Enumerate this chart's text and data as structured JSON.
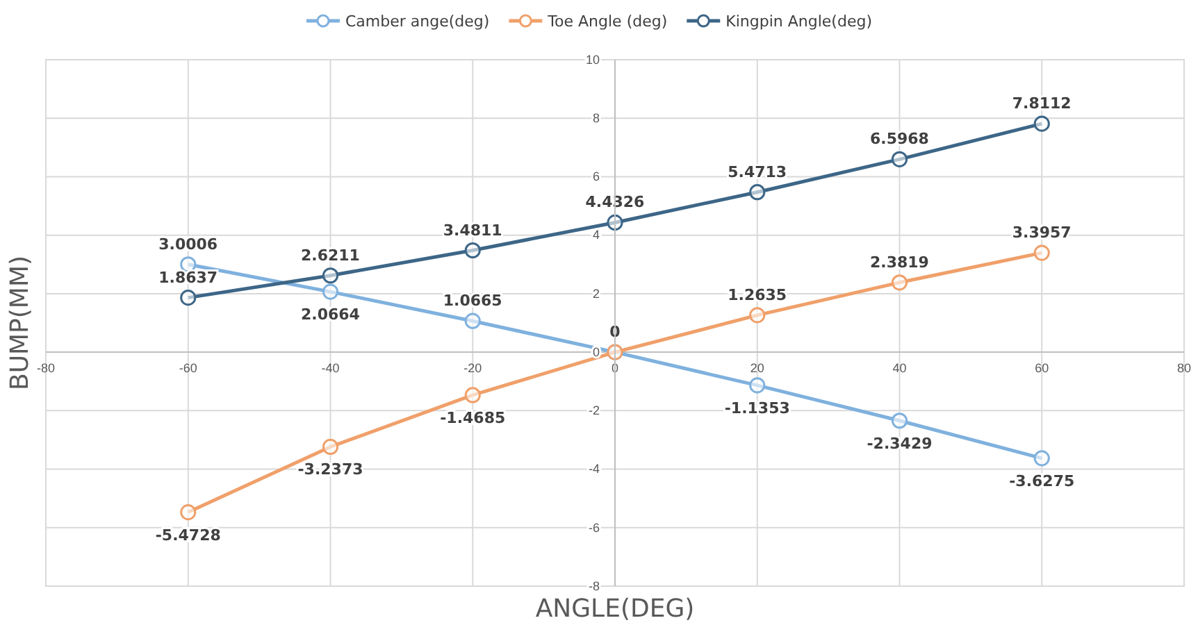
{
  "chart_data": {
    "type": "line",
    "xlabel": "ANGLE(DEG)",
    "ylabel": "BUMP(MM)",
    "x": [
      -60,
      -40,
      -20,
      0,
      20,
      40,
      60
    ],
    "xlim": [
      -80,
      80
    ],
    "xticks": [
      -80,
      -60,
      -40,
      -20,
      0,
      20,
      40,
      60,
      80
    ],
    "ylim": [
      -8,
      10
    ],
    "yticks": [
      -8,
      -6,
      -4,
      -2,
      0,
      2,
      4,
      6,
      8,
      10
    ],
    "grid": true,
    "legend": "top",
    "marker": "circle",
    "line_style": "solid",
    "series": [
      {
        "name": "Camber ange(deg)",
        "color": "#7fb1de",
        "values": [
          3.0006,
          2.0664,
          1.0665,
          0,
          -1.1353,
          -2.3429,
          -3.6275
        ],
        "value_labels": [
          "3.0006",
          "2.0664",
          "1.0665",
          "0",
          "-1.1353",
          "-2.3429",
          "-3.6275"
        ]
      },
      {
        "name": "Toe Angle (deg)",
        "color": "#f0a06a",
        "values": [
          -5.4728,
          -3.2373,
          -1.4685,
          0,
          1.2635,
          2.3819,
          3.3957
        ],
        "value_labels": [
          "-5.4728",
          "-3.2373",
          "-1.4685",
          null,
          "1.2635",
          "2.3819",
          "3.3957"
        ]
      },
      {
        "name": "Kingpin Angle(deg)",
        "color": "#3d6687",
        "values": [
          1.8637,
          2.6211,
          3.4811,
          4.4326,
          5.4713,
          6.5968,
          7.8112
        ],
        "value_labels": [
          "1.8637",
          "2.6211",
          "3.4811",
          "4.4326",
          "5.4713",
          "6.5968",
          "7.8112"
        ]
      }
    ]
  }
}
